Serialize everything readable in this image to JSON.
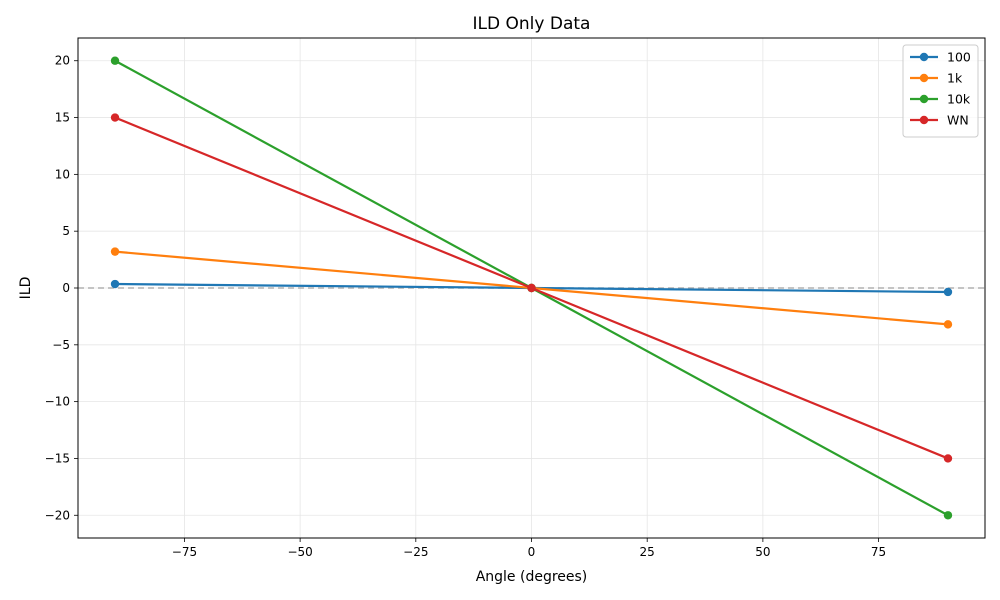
{
  "chart_data": {
    "type": "line",
    "title": "ILD Only Data",
    "xlabel": "Angle (degrees)",
    "ylabel": "ILD",
    "xlim": [
      -98,
      98
    ],
    "ylim": [
      -22,
      22
    ],
    "xticks": [
      -75,
      -50,
      -25,
      0,
      25,
      50,
      75
    ],
    "yticks": [
      -20,
      -15,
      -10,
      -5,
      0,
      5,
      10,
      15,
      20
    ],
    "grid": true,
    "reference_line": {
      "y": 0,
      "style": "dashed",
      "color": "#b0b0b0"
    },
    "legend_position": "top-right",
    "x": [
      -90,
      0,
      90
    ],
    "series": [
      {
        "name": "100",
        "color": "#1f77b4",
        "values": [
          0.35,
          0,
          -0.35
        ]
      },
      {
        "name": "1k",
        "color": "#ff7f0e",
        "values": [
          3.2,
          0,
          -3.2
        ]
      },
      {
        "name": "10k",
        "color": "#2ca02c",
        "values": [
          20,
          0,
          -20
        ]
      },
      {
        "name": "WN",
        "color": "#d62728",
        "values": [
          15,
          0,
          -15
        ]
      }
    ]
  }
}
